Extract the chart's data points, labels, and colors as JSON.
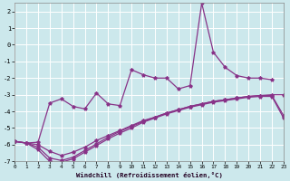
{
  "background_color": "#cce8ec",
  "grid_color": "#ffffff",
  "line_color": "#883388",
  "xlabel": "Windchill (Refroidissement éolien,°C)",
  "xlim": [
    0,
    23
  ],
  "ylim": [
    -7,
    2.5
  ],
  "yticks": [
    -7,
    -6,
    -5,
    -4,
    -3,
    -2,
    -1,
    0,
    1,
    2
  ],
  "xticks": [
    0,
    1,
    2,
    3,
    4,
    5,
    6,
    7,
    8,
    9,
    10,
    11,
    12,
    13,
    14,
    15,
    16,
    17,
    18,
    19,
    20,
    21,
    22,
    23
  ],
  "s1_x": [
    0,
    1,
    2,
    3,
    4,
    5,
    6,
    7,
    8,
    9,
    10,
    11,
    12,
    13,
    14,
    15,
    16,
    17,
    18,
    19,
    20,
    21,
    22
  ],
  "s1_y": [
    -5.8,
    -5.9,
    -5.85,
    -3.5,
    -3.25,
    -3.7,
    -3.85,
    -2.9,
    -3.55,
    -3.65,
    -1.5,
    -1.8,
    -2.0,
    -2.0,
    -2.65,
    -2.45,
    2.5,
    -0.45,
    -1.35,
    -1.85,
    -2.0,
    -2.0,
    -2.1
  ],
  "s2_x": [
    0,
    1,
    2,
    3,
    4,
    5,
    6,
    7,
    8,
    9,
    10,
    11,
    12,
    13,
    14,
    15,
    16,
    17,
    18,
    19,
    20,
    21,
    22,
    23
  ],
  "s2_y": [
    -5.8,
    -5.9,
    -6.0,
    -6.4,
    -6.65,
    -6.45,
    -6.15,
    -5.75,
    -5.45,
    -5.15,
    -4.85,
    -4.55,
    -4.35,
    -4.1,
    -3.9,
    -3.7,
    -3.55,
    -3.4,
    -3.3,
    -3.2,
    -3.1,
    -3.05,
    -3.0,
    -3.0
  ],
  "s3_x": [
    0,
    1,
    2,
    3,
    4,
    5,
    6,
    7,
    8,
    9,
    10,
    11,
    12,
    13,
    14,
    15,
    16,
    17,
    18,
    19,
    20,
    21,
    22,
    23
  ],
  "s3_y": [
    -5.8,
    -5.9,
    -6.15,
    -6.8,
    -6.95,
    -6.75,
    -6.35,
    -5.95,
    -5.55,
    -5.2,
    -4.9,
    -4.6,
    -4.35,
    -4.1,
    -3.9,
    -3.7,
    -3.55,
    -3.4,
    -3.3,
    -3.2,
    -3.1,
    -3.05,
    -3.05,
    -4.25
  ],
  "s4_x": [
    0,
    1,
    2,
    3,
    4,
    5,
    6,
    7,
    8,
    9,
    10,
    11,
    12,
    13,
    14,
    15,
    16,
    17,
    18,
    19,
    20,
    21,
    22,
    23
  ],
  "s4_y": [
    -5.8,
    -5.9,
    -6.3,
    -7.0,
    -7.05,
    -6.85,
    -6.45,
    -6.05,
    -5.65,
    -5.3,
    -5.0,
    -4.65,
    -4.4,
    -4.15,
    -3.95,
    -3.75,
    -3.6,
    -3.45,
    -3.35,
    -3.25,
    -3.15,
    -3.1,
    -3.1,
    -4.4
  ]
}
